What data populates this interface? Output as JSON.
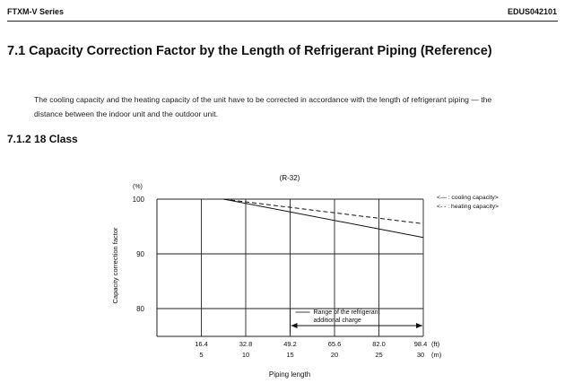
{
  "header": {
    "series": "FTXM-V Series",
    "doc_id": "EDUS042101"
  },
  "section": {
    "title": "7.1  Capacity Correction Factor by the Length of Refrigerant Piping (Reference)",
    "paragraph_line1": "The cooling capacity and the heating capacity of the unit have to be corrected in accordance with the length of refrigerant piping — the",
    "paragraph_line2": "distance between the indoor unit and the outdoor unit."
  },
  "subsection": {
    "title": "7.1.2 18 Class"
  },
  "chart_data": {
    "type": "line",
    "title": "(R-32)",
    "ylabel": "Capacity correction factor",
    "y_unit": "(%)",
    "xlabel": "Piping length",
    "x_unit_ft": "(ft)",
    "x_unit_m": "(m)",
    "xlim": [
      0,
      30
    ],
    "ylim": [
      75,
      100
    ],
    "y_ticks": [
      {
        "v": 100,
        "t": "100"
      },
      {
        "v": 90,
        "t": "90"
      },
      {
        "v": 80,
        "t": "80"
      }
    ],
    "x_ticks": [
      {
        "m": 5,
        "ft": "16.4",
        "mt": "5"
      },
      {
        "m": 10,
        "ft": "32.8",
        "mt": "10"
      },
      {
        "m": 15,
        "ft": "49.2",
        "mt": "15"
      },
      {
        "m": 20,
        "ft": "65.6",
        "mt": "20"
      },
      {
        "m": 25,
        "ft": "82.0",
        "mt": "25"
      },
      {
        "m": 30,
        "ft": "98.4",
        "mt": "30"
      }
    ],
    "series": [
      {
        "name": "cooling capacity",
        "style": "solid",
        "points": [
          [
            7.5,
            100
          ],
          [
            30,
            93
          ]
        ]
      },
      {
        "name": "heating capacity",
        "style": "dashed",
        "points": [
          [
            7.5,
            100
          ],
          [
            30,
            95.5
          ]
        ]
      }
    ],
    "legend": {
      "placement": "top-right",
      "cooling": "<— : cooling capacity>",
      "heating": "<- - : heating capacity>"
    },
    "annotation": {
      "line1": "Range of the refrigerant",
      "line2": "additional charge",
      "x_range": [
        15,
        30
      ]
    }
  }
}
